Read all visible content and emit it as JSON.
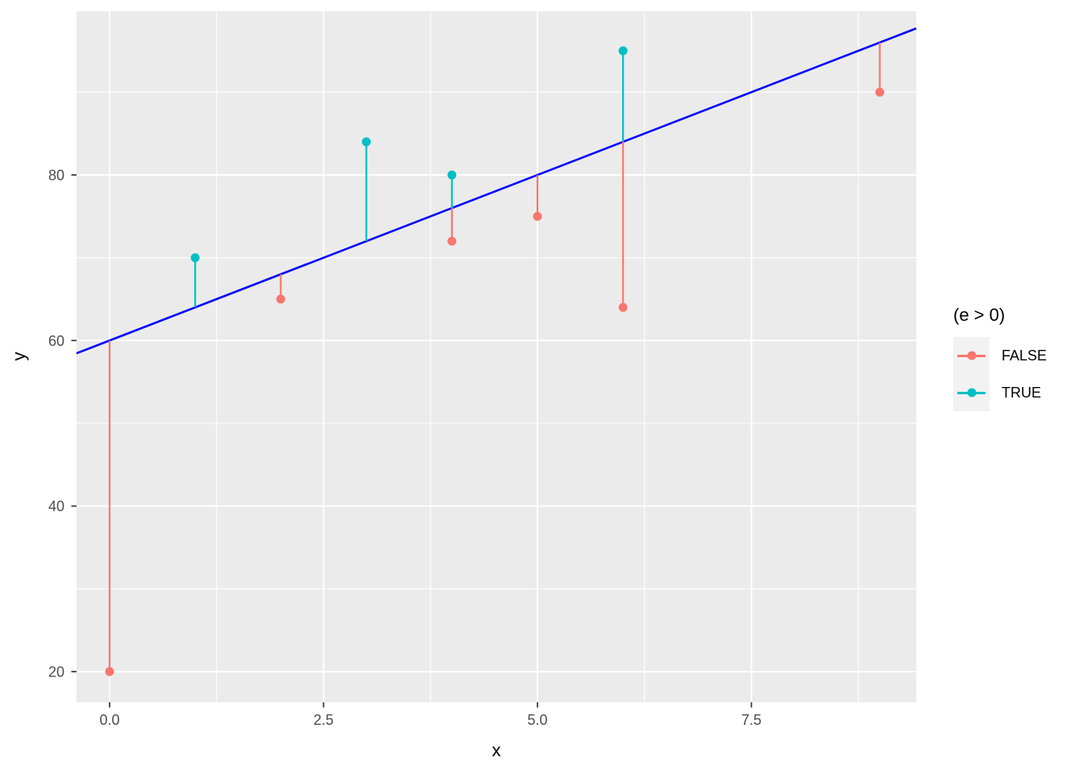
{
  "figure": {
    "xlabel": "x",
    "ylabel": "y",
    "legend": {
      "title": "(e > 0)",
      "entries": [
        {
          "label": "FALSE",
          "color": "#F8766D"
        },
        {
          "label": "TRUE",
          "color": "#00BFC4"
        }
      ]
    },
    "colors": {
      "panel_background": "#EBEBEB",
      "gridline": "#FFFFFF",
      "tick_label": "#4D4D4D",
      "axis_title": "#000000",
      "regression_line": "#0000FF",
      "legend_key_background": "#F2F2F2",
      "false_group": "#F8766D",
      "true_group": "#00BFC4"
    }
  },
  "chart_data": {
    "type": "scatter",
    "subtype": "residual-segment-plot",
    "title": "",
    "xlabel": "x",
    "ylabel": "y",
    "legend_title": "(e > 0)",
    "legend_position": "right",
    "grid": true,
    "panel_background": "#EBEBEB",
    "xlim": [
      -0.39,
      9.44
    ],
    "ylim": [
      16.3,
      100.1
    ],
    "x_major_ticks": [
      0,
      2.5,
      5,
      7.5
    ],
    "x_tick_labels": [
      "0.0",
      "2.5",
      "5.0",
      "7.5"
    ],
    "x_minor_ticks": [
      1.25,
      3.75,
      6.25,
      8.75
    ],
    "y_major_ticks": [
      20,
      40,
      60,
      80
    ],
    "y_tick_labels": [
      "20",
      "40",
      "60",
      "80"
    ],
    "y_minor_ticks": [
      30,
      50,
      70,
      90
    ],
    "regression_line": {
      "intercept": 60,
      "slope": 4,
      "color": "#0000FF",
      "equation": "y = 60 + 4x"
    },
    "series": [
      {
        "name": "FALSE",
        "color": "#F8766D",
        "points": [
          {
            "x": 0,
            "y": 20,
            "fitted": 60,
            "residual": -40
          },
          {
            "x": 2,
            "y": 65,
            "fitted": 68,
            "residual": -3
          },
          {
            "x": 4,
            "y": 72,
            "fitted": 76,
            "residual": -4
          },
          {
            "x": 5,
            "y": 75,
            "fitted": 80,
            "residual": -5
          },
          {
            "x": 6,
            "y": 64,
            "fitted": 84,
            "residual": -20
          },
          {
            "x": 9,
            "y": 90,
            "fitted": 96,
            "residual": -6
          }
        ]
      },
      {
        "name": "TRUE",
        "color": "#00BFC4",
        "points": [
          {
            "x": 1,
            "y": 70,
            "fitted": 64,
            "residual": 6
          },
          {
            "x": 3,
            "y": 84,
            "fitted": 72,
            "residual": 12
          },
          {
            "x": 4,
            "y": 80,
            "fitted": 76,
            "residual": 4
          },
          {
            "x": 6,
            "y": 95,
            "fitted": 84,
            "residual": 11
          }
        ]
      }
    ]
  }
}
